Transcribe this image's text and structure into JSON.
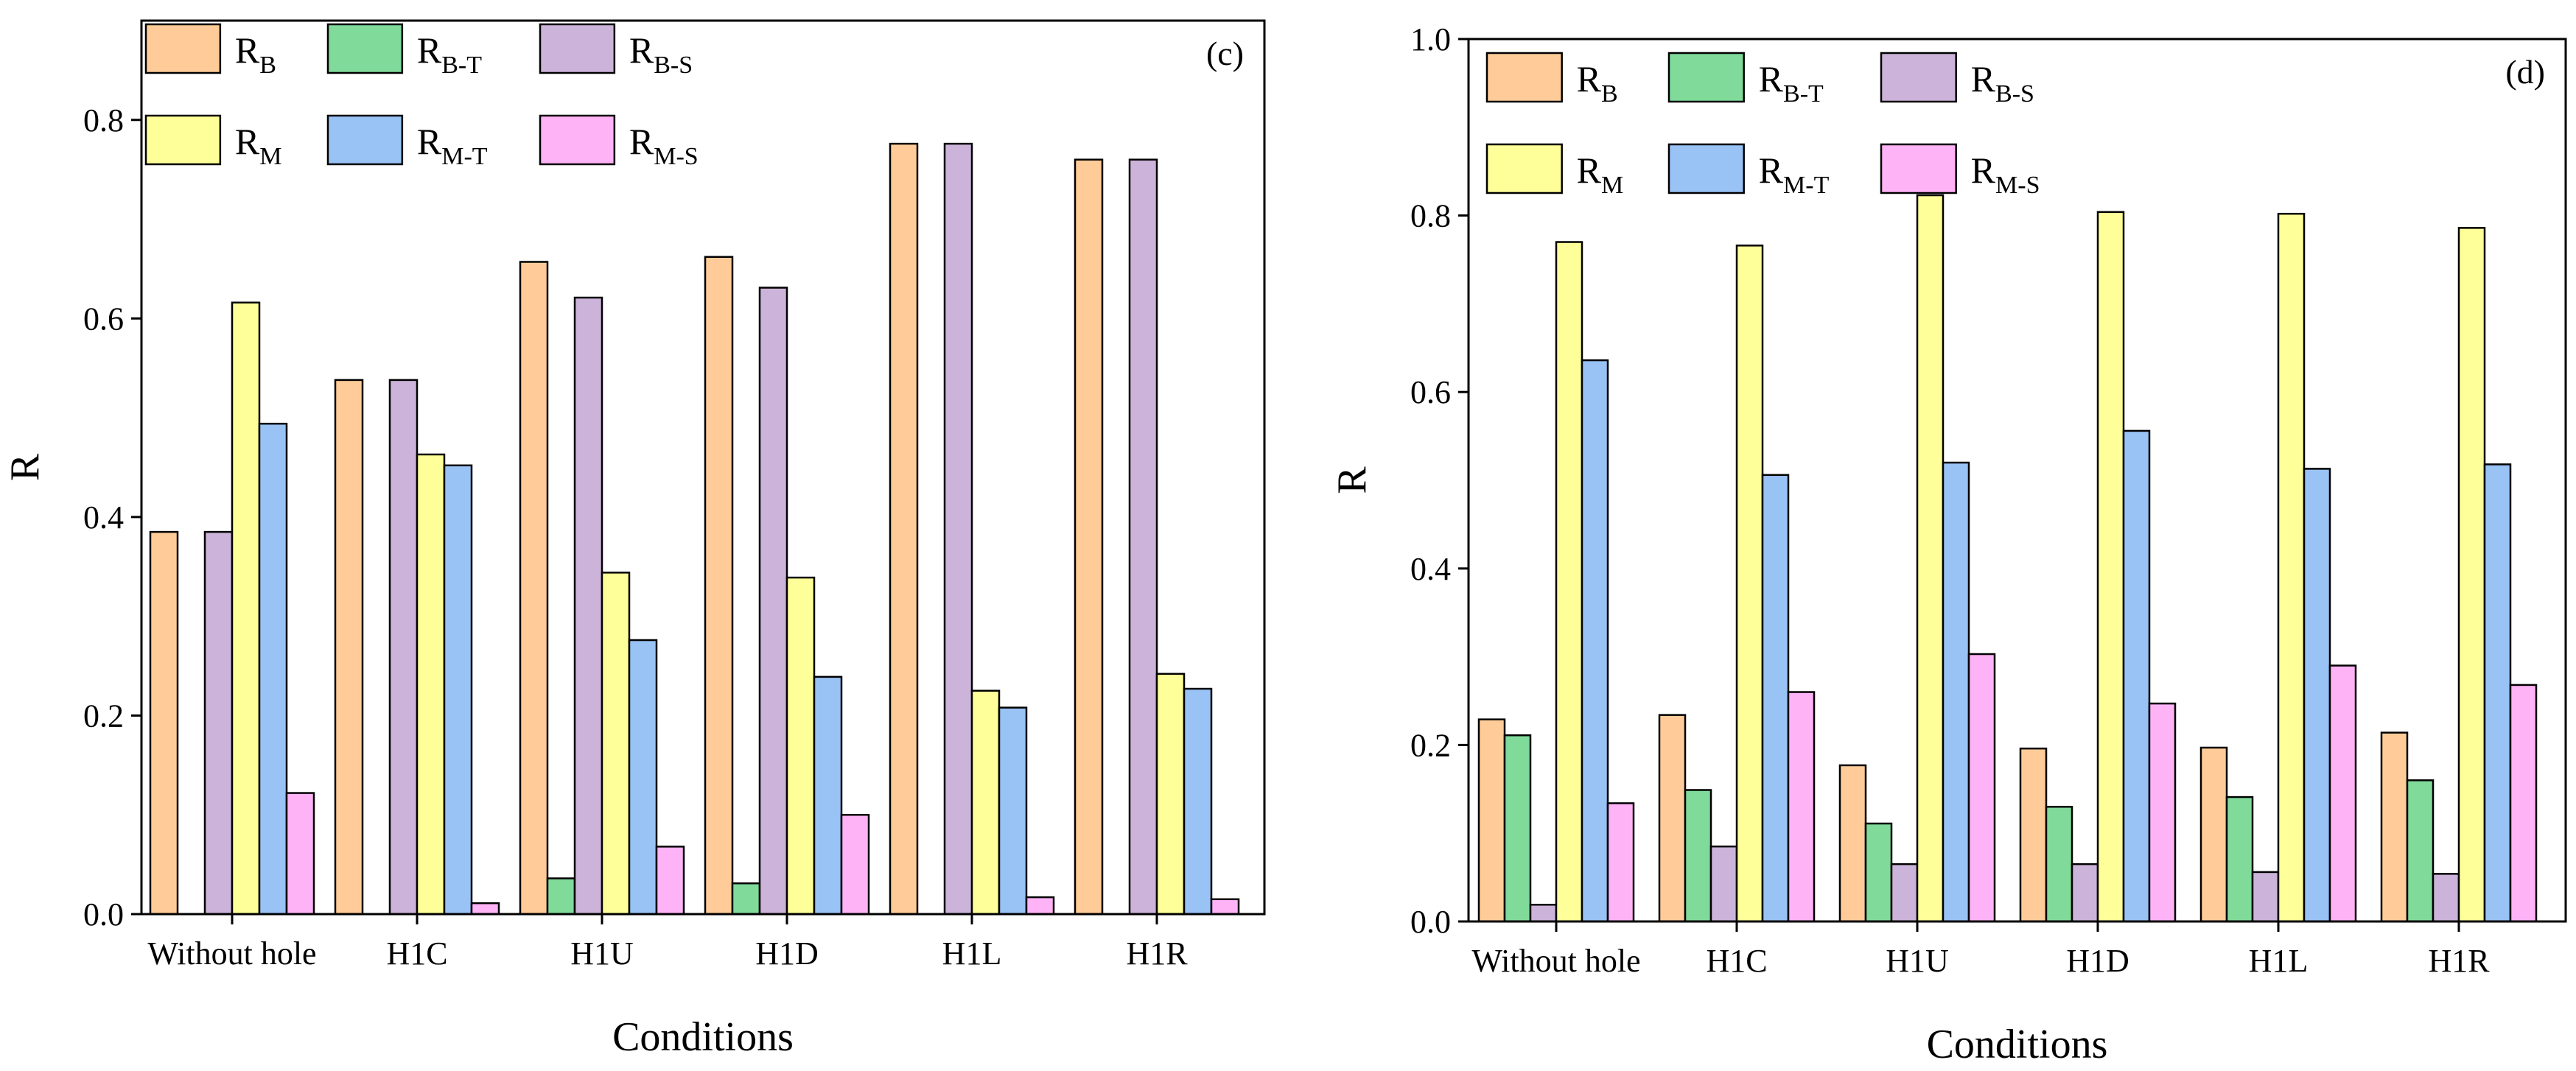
{
  "chart_data": [
    {
      "type": "bar",
      "panel_label": "(c)",
      "xlabel": "Conditions",
      "ylabel": "R",
      "ylim": [
        0,
        0.9
      ],
      "yticks": [
        "0.0",
        "0.2",
        "0.4",
        "0.6",
        "0.8"
      ],
      "legend_location": "top-left",
      "categories": [
        "Without hole",
        "H1C",
        "H1U",
        "H1D",
        "H1L",
        "H1R"
      ],
      "series": [
        {
          "name": "R",
          "sub": "B",
          "color": "#FFCC99",
          "values": [
            0.385,
            0.538,
            0.657,
            0.662,
            0.776,
            0.76
          ]
        },
        {
          "name": "R",
          "sub": "B-T",
          "color": "#80DA9A",
          "values": [
            0.0,
            0.0,
            0.036,
            0.031,
            0.0,
            0.0
          ]
        },
        {
          "name": "R",
          "sub": "B-S",
          "color": "#CCB3D9",
          "values": [
            0.385,
            0.538,
            0.621,
            0.631,
            0.776,
            0.76
          ]
        },
        {
          "name": "R",
          "sub": "M",
          "color": "#FFFF99",
          "values": [
            0.616,
            0.463,
            0.344,
            0.339,
            0.225,
            0.242
          ]
        },
        {
          "name": "R",
          "sub": "M-T",
          "color": "#99C2F5",
          "values": [
            0.494,
            0.452,
            0.276,
            0.239,
            0.208,
            0.227
          ]
        },
        {
          "name": "R",
          "sub": "M-S",
          "color": "#FFB3F7",
          "values": [
            0.122,
            0.011,
            0.068,
            0.1,
            0.017,
            0.015
          ]
        }
      ]
    },
    {
      "type": "bar",
      "panel_label": "(d)",
      "xlabel": "Conditions",
      "ylabel": "R",
      "ylim": [
        0,
        1.0
      ],
      "yticks": [
        "0.0",
        "0.2",
        "0.4",
        "0.6",
        "0.8",
        "1.0"
      ],
      "legend_location": "top-left",
      "categories": [
        "Without hole",
        "H1C",
        "H1U",
        "H1D",
        "H1L",
        "H1R"
      ],
      "series": [
        {
          "name": "R",
          "sub": "B",
          "color": "#FFCC99",
          "values": [
            0.229,
            0.234,
            0.177,
            0.196,
            0.197,
            0.214
          ]
        },
        {
          "name": "R",
          "sub": "B-T",
          "color": "#80DA9A",
          "values": [
            0.211,
            0.149,
            0.111,
            0.13,
            0.141,
            0.16
          ]
        },
        {
          "name": "R",
          "sub": "B-S",
          "color": "#CCB3D9",
          "values": [
            0.019,
            0.085,
            0.065,
            0.065,
            0.056,
            0.054
          ]
        },
        {
          "name": "R",
          "sub": "M",
          "color": "#FFFF99",
          "values": [
            0.77,
            0.766,
            0.823,
            0.804,
            0.802,
            0.786
          ]
        },
        {
          "name": "R",
          "sub": "M-T",
          "color": "#99C2F5",
          "values": [
            0.636,
            0.506,
            0.52,
            0.556,
            0.513,
            0.518
          ]
        },
        {
          "name": "R",
          "sub": "M-S",
          "color": "#FFB3F7",
          "values": [
            0.134,
            0.26,
            0.303,
            0.247,
            0.29,
            0.268
          ]
        }
      ]
    }
  ]
}
